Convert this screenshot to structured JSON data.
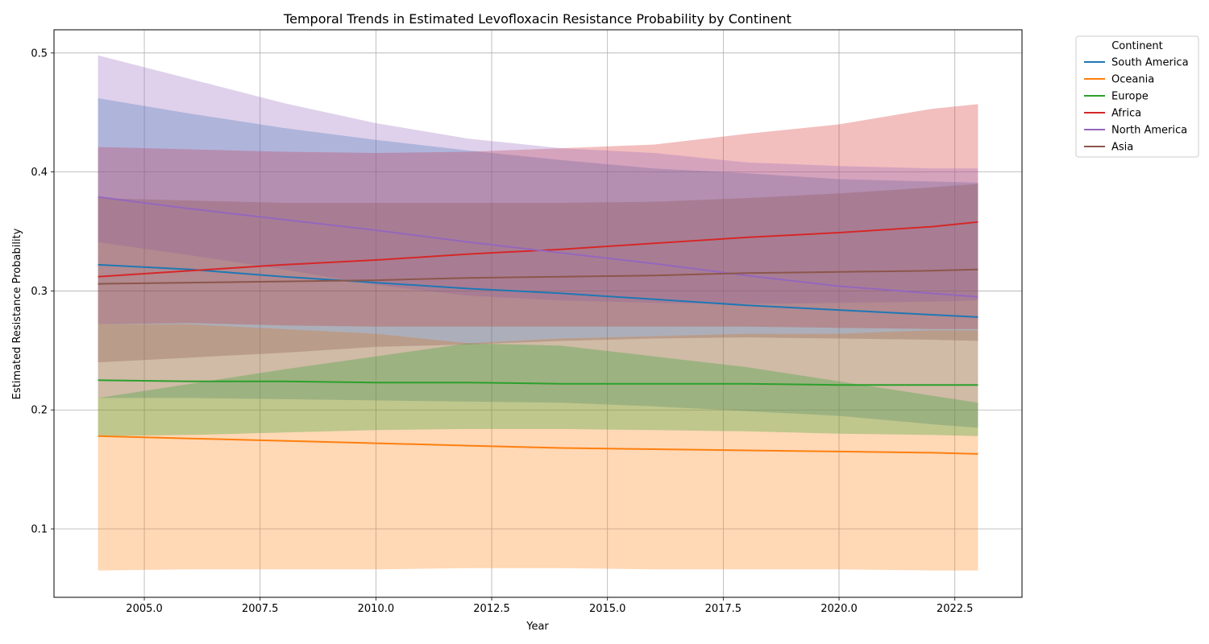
{
  "chart_data": {
    "type": "line",
    "title": "Temporal Trends in Estimated Levofloxacin Resistance Probability by Continent",
    "xlabel": "Year",
    "ylabel": "Estimated Resistance Probability",
    "xlim": [
      2003.05,
      2023.95
    ],
    "ylim": [
      0.0425,
      0.5195
    ],
    "x_ticks": [
      2005.0,
      2007.5,
      2010.0,
      2012.5,
      2015.0,
      2017.5,
      2020.0,
      2022.5
    ],
    "x_tick_labels": [
      "2005.0",
      "2007.5",
      "2010.0",
      "2012.5",
      "2015.0",
      "2017.5",
      "2020.0",
      "2022.5"
    ],
    "y_ticks": [
      0.1,
      0.2,
      0.3,
      0.4,
      0.5
    ],
    "y_tick_labels": [
      "0.1",
      "0.2",
      "0.3",
      "0.4",
      "0.5"
    ],
    "grid": true,
    "legend": {
      "title": "Continent",
      "placement": "outside-top-right"
    },
    "x": [
      2004,
      2006,
      2008,
      2010,
      2012,
      2014,
      2016,
      2018,
      2020,
      2022,
      2023
    ],
    "series": [
      {
        "name": "South America",
        "color": "#1f77b4",
        "values": [
          0.322,
          0.318,
          0.312,
          0.307,
          0.302,
          0.298,
          0.293,
          0.288,
          0.284,
          0.28,
          0.278
        ],
        "upper": [
          0.462,
          0.449,
          0.437,
          0.427,
          0.418,
          0.41,
          0.403,
          0.399,
          0.394,
          0.392,
          0.391
        ],
        "lower": [
          0.21,
          0.21,
          0.209,
          0.208,
          0.207,
          0.206,
          0.203,
          0.199,
          0.195,
          0.188,
          0.185
        ]
      },
      {
        "name": "Oceania",
        "color": "#ff7f0e",
        "values": [
          0.178,
          0.176,
          0.174,
          0.172,
          0.17,
          0.168,
          0.167,
          0.166,
          0.165,
          0.164,
          0.163
        ],
        "upper": [
          0.272,
          0.272,
          0.268,
          0.264,
          0.256,
          0.26,
          0.262,
          0.264,
          0.264,
          0.267,
          0.267
        ],
        "lower": [
          0.065,
          0.066,
          0.066,
          0.066,
          0.067,
          0.067,
          0.066,
          0.066,
          0.066,
          0.065,
          0.065
        ]
      },
      {
        "name": "Europe",
        "color": "#2ca02c",
        "values": [
          0.225,
          0.224,
          0.224,
          0.223,
          0.223,
          0.222,
          0.222,
          0.222,
          0.221,
          0.221,
          0.221
        ],
        "upper": [
          0.21,
          0.222,
          0.234,
          0.245,
          0.256,
          0.254,
          0.245,
          0.236,
          0.224,
          0.212,
          0.206
        ],
        "lower": [
          0.178,
          0.179,
          0.181,
          0.183,
          0.184,
          0.184,
          0.183,
          0.182,
          0.18,
          0.179,
          0.178
        ]
      },
      {
        "name": "Africa",
        "color": "#d62728",
        "values": [
          0.312,
          0.317,
          0.322,
          0.326,
          0.331,
          0.335,
          0.34,
          0.345,
          0.349,
          0.354,
          0.358
        ],
        "upper": [
          0.421,
          0.419,
          0.417,
          0.416,
          0.417,
          0.42,
          0.423,
          0.432,
          0.44,
          0.453,
          0.457
        ],
        "lower": [
          0.272,
          0.273,
          0.271,
          0.27,
          0.27,
          0.27,
          0.27,
          0.27,
          0.269,
          0.268,
          0.268
        ]
      },
      {
        "name": "North America",
        "color": "#9467bd",
        "values": [
          0.379,
          0.369,
          0.36,
          0.351,
          0.341,
          0.332,
          0.323,
          0.313,
          0.304,
          0.298,
          0.295
        ],
        "upper": [
          0.498,
          0.478,
          0.458,
          0.441,
          0.428,
          0.42,
          0.416,
          0.408,
          0.405,
          0.403,
          0.403
        ],
        "lower": [
          0.341,
          0.33,
          0.318,
          0.305,
          0.296,
          0.292,
          0.29,
          0.289,
          0.29,
          0.291,
          0.292
        ]
      },
      {
        "name": "Asia",
        "color": "#8c564b",
        "values": [
          0.306,
          0.307,
          0.308,
          0.309,
          0.311,
          0.312,
          0.313,
          0.315,
          0.316,
          0.317,
          0.318
        ],
        "upper": [
          0.378,
          0.376,
          0.374,
          0.374,
          0.374,
          0.374,
          0.375,
          0.378,
          0.382,
          0.387,
          0.39
        ],
        "lower": [
          0.24,
          0.244,
          0.248,
          0.253,
          0.255,
          0.258,
          0.26,
          0.261,
          0.26,
          0.259,
          0.258
        ]
      }
    ]
  }
}
